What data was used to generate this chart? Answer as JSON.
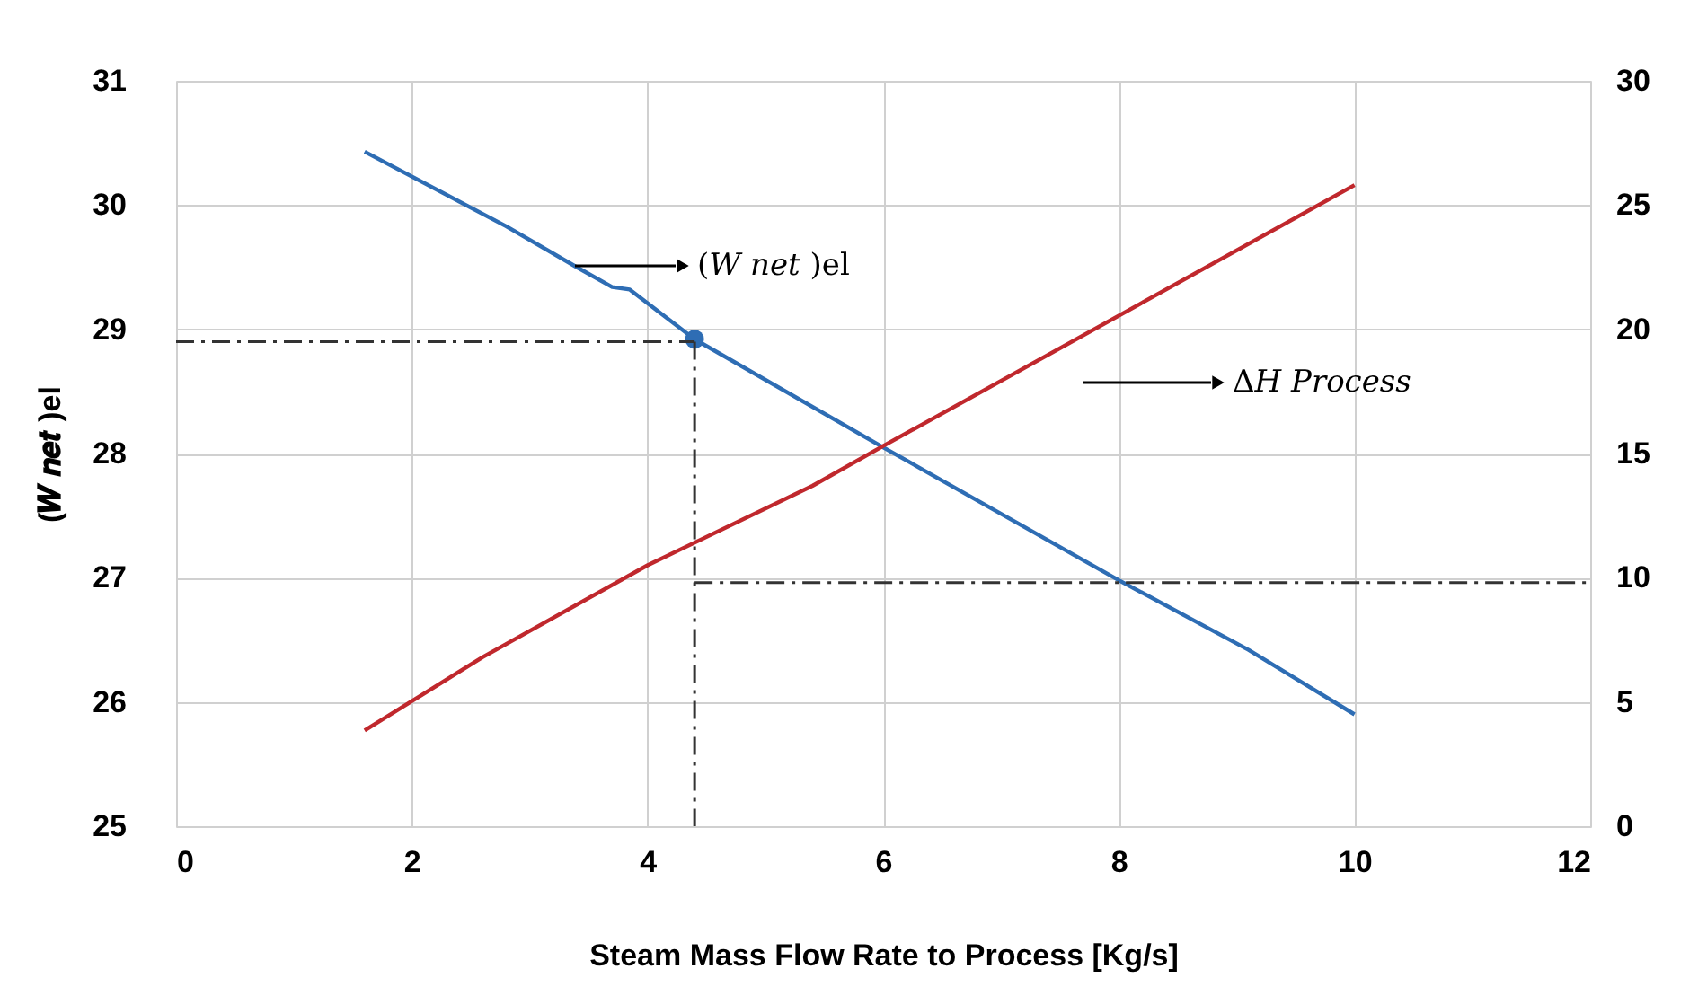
{
  "chart_data": {
    "type": "line",
    "xlabel": "Steam Mass Flow Rate to Process [Kg/s]",
    "ylabel": "(𝑾 𝒏𝒆𝒕 )el",
    "xlim": [
      0,
      12
    ],
    "xticks": [
      0,
      2,
      4,
      6,
      8,
      10,
      12
    ],
    "ylim": [
      25,
      31
    ],
    "yticks": [
      25,
      26,
      27,
      28,
      29,
      30,
      31
    ],
    "y2lim": [
      0,
      30
    ],
    "y2ticks": [
      0,
      5,
      10,
      15,
      20,
      25,
      30
    ],
    "grid": true,
    "marker": "none",
    "line_style": "solid",
    "series": [
      {
        "color": "#2e6db4",
        "x": [
          1.6,
          2.8,
          3.4,
          3.7,
          3.85,
          4.4,
          6.0,
          8.0,
          9.1,
          10.0
        ],
        "values": [
          30.43,
          29.83,
          29.5,
          29.34,
          29.32,
          28.92,
          28.05,
          26.98,
          26.42,
          25.9
        ]
      },
      {
        "axis": "y2",
        "color": "#c0282d",
        "x": [
          1.6,
          2.6,
          4.0,
          5.4,
          6.0,
          10.0
        ],
        "values": [
          3.85,
          6.8,
          10.5,
          13.7,
          15.3,
          25.8
        ]
      },
      {
        "type": "scatter",
        "marker": "circle",
        "color": "#2e6db4",
        "x": [
          4.4
        ],
        "values": [
          28.92
        ]
      }
    ],
    "ref_lines": [
      {
        "axis": "y",
        "value": 28.9,
        "line_style": "dashed",
        "color": "#333333"
      },
      {
        "axis": "x",
        "value": 4.4,
        "line_style": "dashed",
        "color": "#333333"
      },
      {
        "axis": "y2",
        "value": 9.8,
        "line_style": "dashed",
        "color": "#333333"
      }
    ],
    "annotations": [
      "(𝑊 𝑛𝑒𝑡 )el",
      "Δ𝐻 𝑃𝑟𝑜𝑐𝑒𝑠𝑠"
    ]
  }
}
